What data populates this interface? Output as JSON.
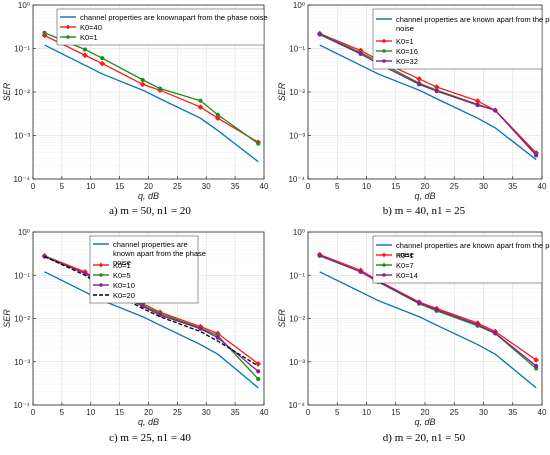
{
  "colors": {
    "blue": "#0072bd",
    "red": "#ff1a1a",
    "green": "#1e8c1e",
    "purple": "#8c1a9e",
    "black": "#000000",
    "grid": "#dcdcdc",
    "axis": "#262626"
  },
  "chart_data": [
    {
      "type": "line",
      "panel": "a",
      "caption": "a) m = 50, n1 = 20",
      "xlabel": "q, dB",
      "ylabel": "SER",
      "xlim": [
        0,
        40
      ],
      "ylim": [
        0.0001,
        1
      ],
      "yscale": "log",
      "grid": true,
      "legend_position": "top",
      "x_ticks": [
        "0",
        "5",
        "10",
        "15",
        "20",
        "25",
        "30",
        "35",
        "40"
      ],
      "y_ticks": [
        "10⁻⁴",
        "10⁻³",
        "10⁻²",
        "10⁻¹",
        "10⁰"
      ],
      "series": [
        {
          "name": "channel properties are knownapart from the phase noise",
          "color": "blue",
          "marker": "none",
          "x": [
            2,
            12,
            19,
            22,
            29,
            32,
            39
          ],
          "y": [
            0.12,
            0.026,
            0.011,
            0.007,
            0.0025,
            0.0013,
            0.00025
          ]
        },
        {
          "name": "K0=40",
          "color": "red",
          "marker": "diamond",
          "x": [
            2,
            9,
            12,
            19,
            22,
            29,
            32,
            39
          ],
          "y": [
            0.2,
            0.07,
            0.045,
            0.015,
            0.011,
            0.0045,
            0.0025,
            0.0007
          ]
        },
        {
          "name": "K0=1",
          "color": "green",
          "marker": "circle",
          "x": [
            2,
            9,
            12,
            19,
            22,
            29,
            32,
            39
          ],
          "y": [
            0.23,
            0.095,
            0.06,
            0.019,
            0.012,
            0.0063,
            0.003,
            0.00065
          ]
        }
      ]
    },
    {
      "type": "line",
      "panel": "b",
      "caption": "b) m = 40, n1 = 25",
      "xlabel": "q, dB",
      "ylabel": "SER",
      "xlim": [
        0,
        40
      ],
      "ylim": [
        0.0001,
        1
      ],
      "yscale": "log",
      "grid": true,
      "legend_position": "top",
      "x_ticks": [
        "0",
        "5",
        "10",
        "15",
        "20",
        "25",
        "30",
        "35",
        "40"
      ],
      "y_ticks": [
        "10⁻⁴",
        "10⁻³",
        "10⁻²",
        "10⁻¹",
        "10⁰"
      ],
      "series": [
        {
          "name": "channel properties are known apart from the phase noise",
          "color": "blue",
          "marker": "none",
          "x": [
            2,
            12,
            19,
            22,
            29,
            32,
            39
          ],
          "y": [
            0.12,
            0.026,
            0.011,
            0.007,
            0.0025,
            0.0015,
            0.00028
          ]
        },
        {
          "name": "K0=1",
          "color": "red",
          "marker": "diamond",
          "x": [
            2,
            9,
            12,
            19,
            22,
            29,
            32,
            39
          ],
          "y": [
            0.22,
            0.09,
            0.055,
            0.02,
            0.013,
            0.0062,
            0.0038,
            0.0004
          ]
        },
        {
          "name": "K0=16",
          "color": "green",
          "marker": "circle",
          "x": [
            2,
            9,
            12,
            19,
            22,
            29,
            32,
            39
          ],
          "y": [
            0.22,
            0.08,
            0.05,
            0.016,
            0.011,
            0.0052,
            0.0038,
            0.00036
          ]
        },
        {
          "name": "K0=32",
          "color": "purple",
          "marker": "circle",
          "x": [
            2,
            9,
            12,
            19,
            22,
            29,
            32,
            39
          ],
          "y": [
            0.21,
            0.075,
            0.045,
            0.015,
            0.0105,
            0.005,
            0.0038,
            0.00035
          ]
        }
      ]
    },
    {
      "type": "line",
      "panel": "c",
      "caption": "c) m = 25, n1 = 40",
      "xlabel": "q, dB",
      "ylabel": "SER",
      "xlim": [
        0,
        40
      ],
      "ylim": [
        0.0001,
        1
      ],
      "yscale": "log",
      "grid": true,
      "legend_position": "top",
      "x_ticks": [
        "0",
        "5",
        "10",
        "15",
        "20",
        "25",
        "30",
        "35",
        "40"
      ],
      "y_ticks": [
        "10⁻⁴",
        "10⁻³",
        "10⁻²",
        "10⁻¹",
        "10⁰"
      ],
      "series": [
        {
          "name": "channel properties are known apart from the phase noise",
          "color": "blue",
          "marker": "none",
          "x": [
            2,
            12,
            19,
            22,
            29,
            32,
            39
          ],
          "y": [
            0.12,
            0.026,
            0.011,
            0.007,
            0.0025,
            0.0015,
            0.00025
          ]
        },
        {
          "name": "K0=1",
          "color": "red",
          "marker": "diamond",
          "x": [
            2,
            9,
            12,
            19,
            22,
            29,
            32,
            39
          ],
          "y": [
            0.28,
            0.12,
            0.065,
            0.022,
            0.014,
            0.0065,
            0.0045,
            0.0009
          ]
        },
        {
          "name": "K0=5",
          "color": "green",
          "marker": "circle",
          "x": [
            2,
            9,
            12,
            19,
            22,
            29,
            32,
            39
          ],
          "y": [
            0.28,
            0.11,
            0.06,
            0.02,
            0.013,
            0.006,
            0.004,
            0.0004
          ]
        },
        {
          "name": "K0=10",
          "color": "purple",
          "marker": "circle",
          "x": [
            2,
            9,
            12,
            19,
            22,
            29,
            32,
            39
          ],
          "y": [
            0.27,
            0.11,
            0.06,
            0.019,
            0.012,
            0.0058,
            0.0036,
            0.0006
          ]
        },
        {
          "name": "K0=20",
          "color": "black",
          "marker": "none",
          "dash": true,
          "x": [
            2,
            9,
            12,
            19,
            22,
            29,
            32,
            39
          ],
          "y": [
            0.27,
            0.1,
            0.055,
            0.017,
            0.011,
            0.005,
            0.003,
            0.0008
          ]
        }
      ]
    },
    {
      "type": "line",
      "panel": "d",
      "caption": "d) m = 20, n1 = 50",
      "xlabel": "q, dB",
      "ylabel": "SER",
      "xlim": [
        0,
        40
      ],
      "ylim": [
        0.0001,
        1
      ],
      "yscale": "log",
      "grid": true,
      "legend_position": "top",
      "x_ticks": [
        "0",
        "5",
        "10",
        "15",
        "20",
        "25",
        "30",
        "35",
        "40"
      ],
      "y_ticks": [
        "10⁻⁴",
        "10⁻³",
        "10⁻²",
        "10⁻¹",
        "10⁰"
      ],
      "series": [
        {
          "name": "channel properties are known apart from the phase noise",
          "color": "blue",
          "marker": "none",
          "x": [
            2,
            12,
            19,
            22,
            29,
            32,
            39
          ],
          "y": [
            0.12,
            0.026,
            0.011,
            0.007,
            0.0025,
            0.0015,
            0.00025
          ]
        },
        {
          "name": "K0=1",
          "color": "red",
          "marker": "diamond",
          "x": [
            2,
            9,
            12,
            19,
            22,
            29,
            32,
            39
          ],
          "y": [
            0.3,
            0.13,
            0.075,
            0.024,
            0.017,
            0.0078,
            0.005,
            0.0011
          ]
        },
        {
          "name": "K0=7",
          "color": "green",
          "marker": "circle",
          "x": [
            2,
            9,
            12,
            19,
            22,
            29,
            32,
            39
          ],
          "y": [
            0.28,
            0.12,
            0.07,
            0.022,
            0.015,
            0.0068,
            0.0045,
            0.0007
          ]
        },
        {
          "name": "K0=14",
          "color": "purple",
          "marker": "circle",
          "x": [
            2,
            9,
            12,
            19,
            22,
            29,
            32,
            39
          ],
          "y": [
            0.29,
            0.12,
            0.072,
            0.023,
            0.016,
            0.0072,
            0.0046,
            0.0008
          ]
        }
      ]
    }
  ]
}
